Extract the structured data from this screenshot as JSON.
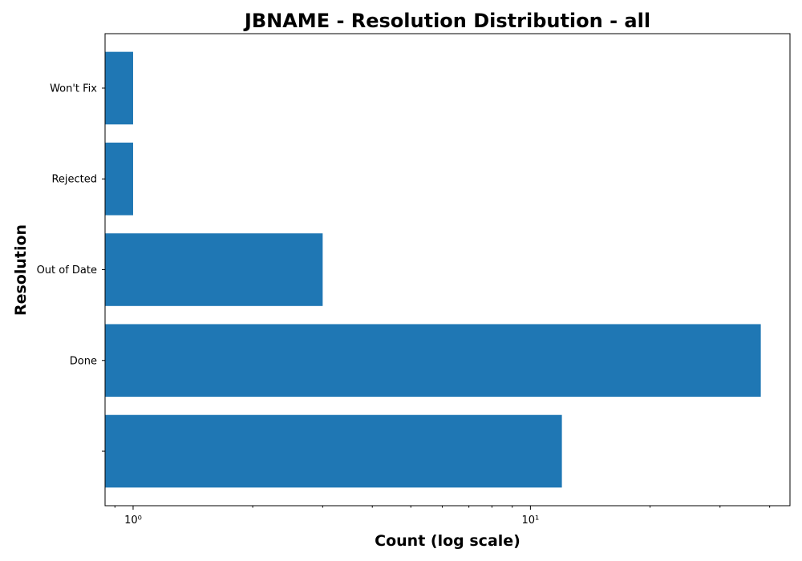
{
  "chart_data": {
    "type": "bar",
    "orientation": "horizontal",
    "title": "JBNAME - Resolution Distribution - all",
    "xlabel": "Count (log scale)",
    "ylabel": "Resolution",
    "x_scale": "log",
    "xlim": [
      0.85,
      45
    ],
    "x_major_ticks": [
      {
        "value": 1,
        "label": "10⁰"
      },
      {
        "value": 10,
        "label": "10¹"
      }
    ],
    "categories": [
      "",
      "Done",
      "Out of Date",
      "Rejected",
      "Won't Fix"
    ],
    "values": [
      12,
      38,
      3,
      1,
      1
    ],
    "bar_color": "#1f77b4",
    "grid": false,
    "legend": "none"
  }
}
